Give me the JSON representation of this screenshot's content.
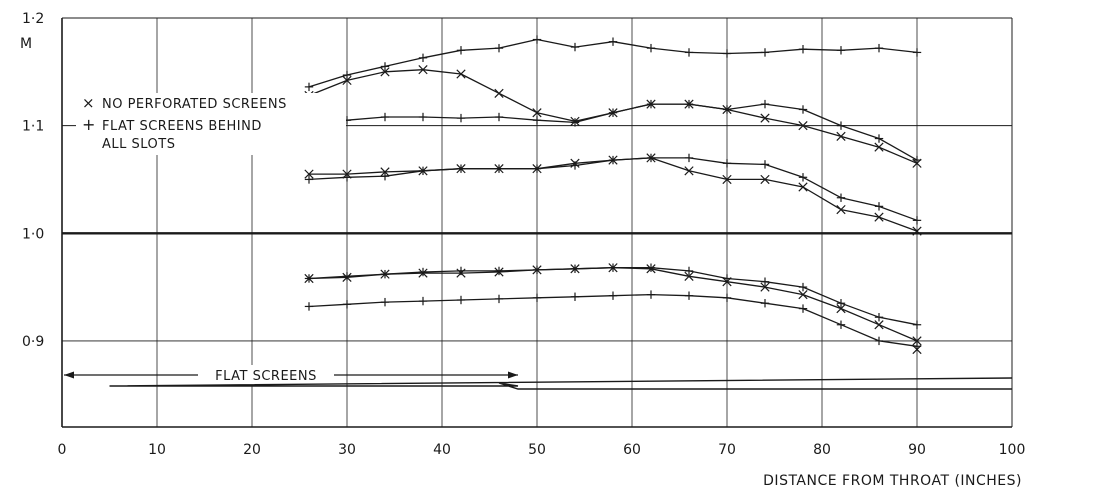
{
  "chart_data": {
    "type": "line",
    "title": "",
    "xlabel": "DISTANCE FROM THROAT (INCHES)",
    "ylabel": "M",
    "xlim": [
      0,
      100
    ],
    "ylim": [
      0.82,
      1.2
    ],
    "grid": true,
    "x_ticks": [
      0,
      10,
      20,
      30,
      40,
      50,
      60,
      70,
      80,
      90,
      100
    ],
    "x_tick_labels": [
      "0",
      "10",
      "20",
      "30",
      "40",
      "50",
      "60",
      "70",
      "80",
      "90",
      "100"
    ],
    "y_ticks": [
      0.9,
      1.0,
      1.1,
      1.2
    ],
    "y_tick_labels": [
      "0·9",
      "1·0",
      "1·1",
      "1·2"
    ],
    "reference_line_y": 1.0,
    "legend": {
      "position": "upper-left",
      "entries": [
        {
          "marker": "×",
          "label": "NO PERFORATED SCREENS"
        },
        {
          "marker": "+",
          "label": "FLAT SCREENS BEHIND",
          "label_line2": "ALL SLOTS"
        }
      ]
    },
    "annotation": {
      "text": "FLAT SCREENS",
      "x_start": 0,
      "x_end": 48
    },
    "series": [
      {
        "marker": "+",
        "x": [
          26,
          30,
          34,
          38,
          42,
          46,
          50,
          54,
          58,
          62,
          66,
          70,
          74,
          78,
          82,
          86,
          90
        ],
        "values": [
          1.136,
          1.147,
          1.155,
          1.163,
          1.17,
          1.172,
          1.18,
          1.173,
          1.178,
          1.172,
          1.168,
          1.167,
          1.168,
          1.171,
          1.17,
          1.172,
          1.168
        ]
      },
      {
        "marker": "×",
        "x": [
          26,
          30,
          34,
          38,
          42,
          46,
          50,
          54,
          58,
          62,
          66,
          70,
          74,
          78,
          82,
          86,
          90
        ],
        "values": [
          1.128,
          1.142,
          1.15,
          1.152,
          1.148,
          1.13,
          1.112,
          1.104,
          1.112,
          1.12,
          1.12,
          1.115,
          1.107,
          1.1,
          1.09,
          1.08,
          1.065
        ]
      },
      {
        "marker": "+",
        "x": [
          26,
          30,
          34,
          38,
          42,
          46,
          50,
          54,
          58,
          62,
          66,
          70,
          74,
          78,
          82,
          86,
          90
        ],
        "values": [
          1.101,
          1.105,
          1.108,
          1.108,
          1.107,
          1.108,
          1.105,
          1.103,
          1.112,
          1.12,
          1.12,
          1.115,
          1.12,
          1.115,
          1.1,
          1.088,
          1.068
        ]
      },
      {
        "marker": "×",
        "x": [
          26,
          30,
          34,
          38,
          42,
          46,
          50,
          54,
          58,
          62,
          66,
          70,
          74,
          78,
          82,
          86,
          90
        ],
        "values": [
          1.055,
          1.055,
          1.057,
          1.058,
          1.06,
          1.06,
          1.06,
          1.065,
          1.068,
          1.07,
          1.058,
          1.05,
          1.05,
          1.043,
          1.022,
          1.015,
          1.002
        ]
      },
      {
        "marker": "+",
        "x": [
          26,
          30,
          34,
          38,
          42,
          46,
          50,
          54,
          58,
          62,
          66,
          70,
          74,
          78,
          82,
          86,
          90
        ],
        "values": [
          1.05,
          1.052,
          1.053,
          1.058,
          1.06,
          1.06,
          1.06,
          1.063,
          1.068,
          1.07,
          1.07,
          1.065,
          1.064,
          1.052,
          1.033,
          1.025,
          1.012
        ]
      },
      {
        "marker": "×",
        "x": [
          26,
          30,
          34,
          38,
          42,
          46,
          50,
          54,
          58,
          62,
          66,
          70,
          74,
          78,
          82,
          86,
          90
        ],
        "values": [
          0.958,
          0.959,
          0.962,
          0.963,
          0.963,
          0.964,
          0.966,
          0.967,
          0.968,
          0.967,
          0.96,
          0.955,
          0.95,
          0.943,
          0.93,
          0.915,
          0.9
        ]
      },
      {
        "marker": "+",
        "x": [
          26,
          30,
          34,
          38,
          42,
          46,
          50,
          54,
          58,
          62,
          66,
          70,
          74,
          78,
          82,
          86,
          90
        ],
        "values": [
          0.958,
          0.96,
          0.962,
          0.964,
          0.965,
          0.965,
          0.966,
          0.967,
          0.968,
          0.968,
          0.965,
          0.958,
          0.955,
          0.95,
          0.935,
          0.922,
          0.915
        ]
      },
      {
        "marker": "+",
        "x": [
          26,
          30,
          34,
          38,
          42,
          46,
          50,
          54,
          58,
          62,
          66,
          70,
          74,
          78,
          82,
          86,
          90
        ],
        "values": [
          0.932,
          0.934,
          0.936,
          0.937,
          0.938,
          0.939,
          0.94,
          0.941,
          0.942,
          0.943,
          0.942,
          0.94,
          0.935,
          0.93,
          0.915,
          0.9,
          0.895
        ]
      },
      {
        "marker": "×",
        "x": [
          90
        ],
        "values": [
          0.892
        ]
      }
    ]
  }
}
